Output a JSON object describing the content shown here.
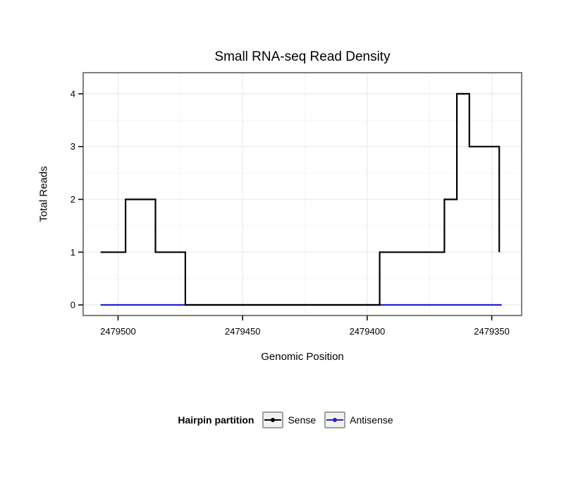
{
  "chart_data": {
    "type": "line",
    "subtype": "step",
    "title": "Small RNA-seq Read Density",
    "xlabel": "Genomic Position",
    "ylabel": "Total Reads",
    "legend_title": "Hairpin partition",
    "x_reversed": true,
    "xlim": [
      2479514,
      2479338
    ],
    "ylim": [
      -0.2,
      4.4
    ],
    "x_ticks": [
      2479500,
      2479450,
      2479400,
      2479350
    ],
    "y_ticks": [
      0,
      1,
      2,
      3,
      4
    ],
    "grid": true,
    "legend_position": "bottom",
    "colors": {
      "panel_border": "#7f7f7f",
      "grid_major": "#ececec",
      "grid_minor": "#f6f6f6",
      "tick": "#000000"
    },
    "series": [
      {
        "name": "Sense",
        "color": "#000000",
        "points": [
          [
            2479507,
            1
          ],
          [
            2479497,
            1
          ],
          [
            2479497,
            2
          ],
          [
            2479485,
            2
          ],
          [
            2479485,
            1
          ],
          [
            2479473,
            1
          ],
          [
            2479473,
            0
          ],
          [
            2479395,
            0
          ],
          [
            2479395,
            1
          ],
          [
            2479369,
            1
          ],
          [
            2479369,
            2
          ],
          [
            2479364,
            2
          ],
          [
            2479364,
            4
          ],
          [
            2479359,
            4
          ],
          [
            2479359,
            3
          ],
          [
            2479347,
            3
          ],
          [
            2479347,
            1
          ]
        ]
      },
      {
        "name": "Antisense",
        "color": "#2222cc",
        "points": [
          [
            2479507,
            0
          ],
          [
            2479346,
            0
          ]
        ]
      }
    ]
  }
}
